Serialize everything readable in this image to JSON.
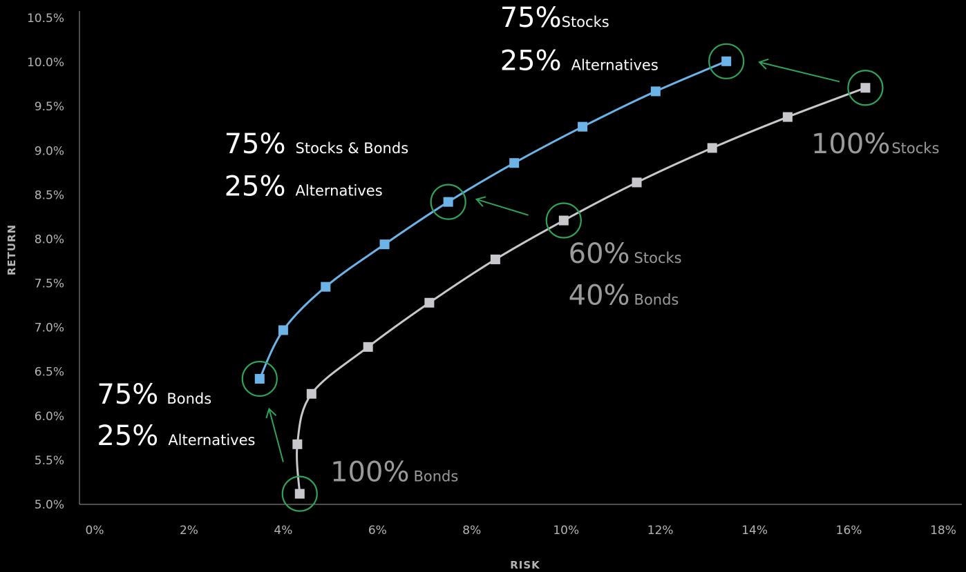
{
  "chart_data": {
    "type": "line",
    "xlabel": "RISK",
    "ylabel": "RETURN",
    "xlim": [
      0,
      18
    ],
    "ylim": [
      5.0,
      10.5
    ],
    "x_ticks": [
      "0%",
      "2%",
      "4%",
      "6%",
      "8%",
      "10%",
      "12%",
      "14%",
      "16%",
      "18%"
    ],
    "y_ticks": [
      "5.0%",
      "5.5%",
      "6.0%",
      "6.5%",
      "7.0%",
      "7.5%",
      "8.0%",
      "8.5%",
      "9.0%",
      "9.5%",
      "10.0%",
      "10.5%"
    ],
    "grid": false,
    "series": [
      {
        "color": "#6cb4e8",
        "x": [
          3.5,
          4.0,
          4.9,
          6.15,
          7.5,
          8.9,
          10.35,
          11.9,
          13.4
        ],
        "y": [
          6.42,
          6.97,
          7.46,
          7.94,
          8.42,
          8.86,
          9.27,
          9.67,
          10.01
        ]
      },
      {
        "color": "#c8c8cc",
        "x": [
          4.35,
          4.3,
          4.6,
          5.8,
          7.1,
          8.5,
          9.95,
          11.5,
          13.1,
          14.7,
          16.35
        ],
        "y": [
          5.12,
          5.68,
          6.25,
          6.78,
          7.28,
          7.77,
          8.21,
          8.64,
          9.03,
          9.38,
          9.71
        ]
      }
    ],
    "highlights": {
      "color": "#2fa35a",
      "points": [
        {
          "x": 4.35,
          "y": 5.12
        },
        {
          "x": 3.5,
          "y": 6.42
        },
        {
          "x": 9.95,
          "y": 8.21
        },
        {
          "x": 7.5,
          "y": 8.42
        },
        {
          "x": 16.35,
          "y": 9.71
        },
        {
          "x": 13.4,
          "y": 10.01
        }
      ],
      "arrows": [
        {
          "from": [
            4.0,
            5.48
          ],
          "to": [
            3.7,
            6.08
          ]
        },
        {
          "from": [
            9.2,
            8.27
          ],
          "to": [
            8.1,
            8.45
          ]
        },
        {
          "from": [
            15.8,
            9.78
          ],
          "to": [
            14.1,
            10.0
          ]
        }
      ]
    },
    "annotations": [
      {
        "big": "75%",
        "small": "Stocks",
        "color": "#ffffff",
        "x": 8.6,
        "y": 10.4,
        "gap": 0
      },
      {
        "big": "25%",
        "small": "Alternatives",
        "color": "#ffffff",
        "x": 8.6,
        "y": 9.91,
        "gap": 14
      },
      {
        "big": "75%",
        "small": "Stocks & Bonds",
        "color": "#ffffff",
        "x": 2.75,
        "y": 8.97,
        "gap": 14
      },
      {
        "big": "25%",
        "small": "Alternatives",
        "color": "#ffffff",
        "x": 2.75,
        "y": 8.49,
        "gap": 14
      },
      {
        "big": "75%",
        "small": "Bonds",
        "color": "#ffffff",
        "x": 0.05,
        "y": 6.14,
        "gap": 12
      },
      {
        "big": "25%",
        "small": "Alternatives",
        "color": "#ffffff",
        "x": 0.05,
        "y": 5.67,
        "gap": 14
      },
      {
        "big": "100%",
        "small": "Stocks",
        "color": "#9a9a9a",
        "x": 15.2,
        "y": 8.97,
        "gap": 2
      },
      {
        "big": "60%",
        "small": "Stocks",
        "color": "#9a9a9a",
        "x": 10.05,
        "y": 7.73,
        "gap": 6
      },
      {
        "big": "40%",
        "small": "Bonds",
        "color": "#9a9a9a",
        "x": 10.05,
        "y": 7.26,
        "gap": 6
      },
      {
        "big": "100%",
        "small": "Bonds",
        "color": "#9a9a9a",
        "x": 5.0,
        "y": 5.26,
        "gap": 6
      }
    ]
  }
}
